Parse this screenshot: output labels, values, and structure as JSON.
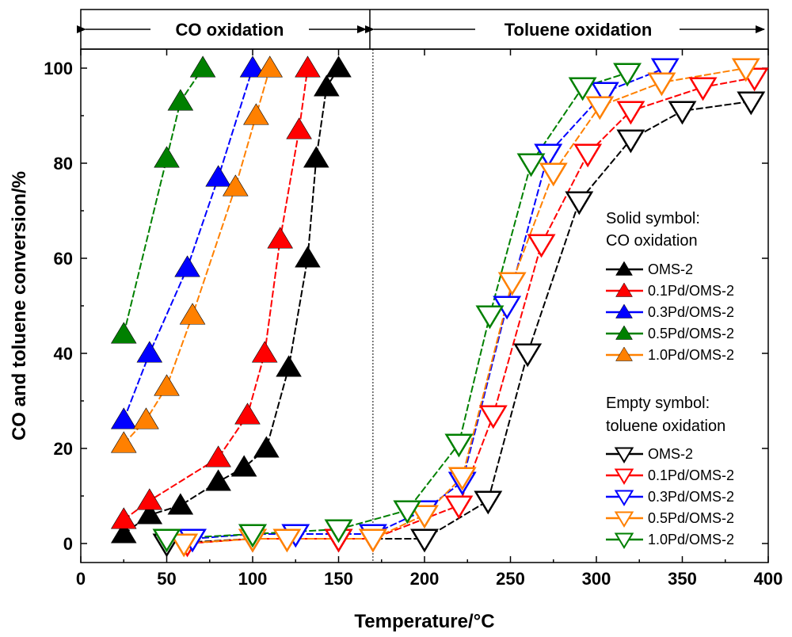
{
  "chart_data": {
    "type": "line",
    "xlabel": "Temperature/°C",
    "ylabel": "CO and toluene conversion/%",
    "xlim": [
      0,
      400
    ],
    "ylim": [
      -4,
      104
    ],
    "xticks": [
      0,
      50,
      100,
      150,
      200,
      250,
      300,
      350,
      400
    ],
    "yticks": [
      0,
      20,
      40,
      60,
      80,
      100
    ],
    "divider_x": 170,
    "regions": {
      "left": "CO oxidation",
      "right": "Toluene oxidation"
    },
    "legend": {
      "solid_heading": [
        "Solid symbol:",
        "CO oxidation"
      ],
      "empty_heading": [
        "Empty symbol:",
        "toluene oxidation"
      ]
    },
    "co_series": [
      {
        "name": "OMS-2",
        "color": "#000000",
        "x": [
          25,
          40,
          58,
          80,
          95,
          108,
          121,
          132,
          137,
          143,
          150
        ],
        "y": [
          2,
          6,
          8,
          13,
          16,
          20,
          37,
          60,
          81,
          96,
          100
        ]
      },
      {
        "name": "0.1Pd/OMS-2",
        "color": "#ff0000",
        "x": [
          25,
          40,
          80,
          97,
          107,
          116,
          127,
          132
        ],
        "y": [
          5,
          9,
          18,
          27,
          40,
          64,
          87,
          100
        ]
      },
      {
        "name": "0.3Pd/OMS-2",
        "color": "#0000ff",
        "x": [
          25,
          40,
          62,
          80,
          100
        ],
        "y": [
          26,
          40,
          58,
          77,
          100
        ]
      },
      {
        "name": "0.5Pd/OMS-2",
        "color": "#008000",
        "x": [
          25,
          50,
          58,
          71
        ],
        "y": [
          44,
          81,
          93,
          100
        ]
      },
      {
        "name": "1.0Pd/OMS-2",
        "color": "#ff8000",
        "x": [
          25,
          38,
          50,
          65,
          90,
          102,
          110
        ],
        "y": [
          21,
          26,
          33,
          48,
          75,
          90,
          100
        ]
      }
    ],
    "toluene_series": [
      {
        "name": "OMS-2",
        "color": "#000000",
        "x": [
          50,
          100,
          150,
          200,
          237,
          260,
          290,
          320,
          350,
          390
        ],
        "y": [
          0,
          1,
          1,
          1,
          9,
          40,
          72,
          85,
          91,
          93
        ]
      },
      {
        "name": "0.1Pd/OMS-2",
        "color": "#ff0000",
        "x": [
          62,
          100,
          150,
          170,
          220,
          240,
          268,
          295,
          320,
          362,
          392
        ],
        "y": [
          0,
          1,
          1,
          1,
          8,
          27,
          63,
          82,
          91,
          96,
          98
        ]
      },
      {
        "name": "0.3Pd/OMS-2",
        "color": "#0000ff",
        "x": [
          65,
          100,
          125,
          170,
          200,
          222,
          248,
          272,
          305,
          340
        ],
        "y": [
          1,
          2,
          2,
          2,
          7,
          13,
          50,
          82,
          95,
          100
        ]
      },
      {
        "name": "0.5Pd/OMS-2",
        "color": "#ff8000",
        "x": [
          60,
          100,
          120,
          170,
          200,
          222,
          251,
          275,
          302,
          338,
          387
        ],
        "y": [
          0,
          1,
          1,
          1,
          6,
          14,
          55,
          78,
          92,
          97,
          100
        ]
      },
      {
        "name": "1.0Pd/OMS-2",
        "color": "#008000",
        "x": [
          50,
          100,
          150,
          190,
          220,
          238,
          262,
          292,
          318
        ],
        "y": [
          1,
          2,
          3,
          7,
          21,
          48,
          80,
          96,
          99
        ]
      }
    ]
  }
}
